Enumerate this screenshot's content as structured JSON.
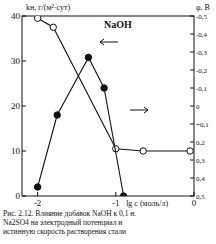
{
  "chart_data": {
    "type": "line",
    "title": "NaOH",
    "caption": [
      "Рис. 2.12. Влияние добавок NaOH к 0,1 н.",
      "Na2SO4 на электродный потенциал и",
      "истинную скорость растворения стали"
    ],
    "x_label": "lg c (моль/л)",
    "y_label": "kн, г/(м²·сут)",
    "y2_label": "φ, В",
    "xlim": [
      -2.2,
      0
    ],
    "xticks": [
      -2,
      -1,
      0
    ],
    "ylim": [
      0,
      40
    ],
    "yticks": [
      0,
      10,
      20,
      30,
      40
    ],
    "y2lim": [
      0.5,
      -0.5
    ],
    "y2ticks": [
      {
        "value": -0.5,
        "label": "-0,5"
      },
      {
        "value": -0.4,
        "label": "-0,4"
      },
      {
        "value": -0.3,
        "label": "-0,3"
      },
      {
        "value": -0.2,
        "label": "-0,2"
      },
      {
        "value": -0.1,
        "label": "-0,1"
      },
      0,
      {
        "value": 0.1,
        "label": "+0,1"
      },
      {
        "value": 0.2,
        "label": "0,2"
      },
      {
        "value": 0.3,
        "label": "0,3"
      },
      {
        "value": 0.4,
        "label": "0,4"
      },
      {
        "value": 0.5,
        "label": "0,5"
      }
    ],
    "series": [
      {
        "color": "#111111",
        "marker": "open-circle",
        "x": [
          -2.0,
          -1.8,
          -1.0,
          -0.65,
          -0.05
        ],
        "values": [
          39.5,
          37.5,
          10.5,
          10,
          10
        ]
      },
      {
        "color": "#111111",
        "marker": "filled-circle",
        "axis": "y2",
        "x": [
          -2.0,
          -1.75,
          -1.35,
          -1.15,
          -0.9
        ],
        "values": [
          0.45,
          0.05,
          -0.27,
          -0.1,
          0.5
        ]
      }
    ]
  }
}
